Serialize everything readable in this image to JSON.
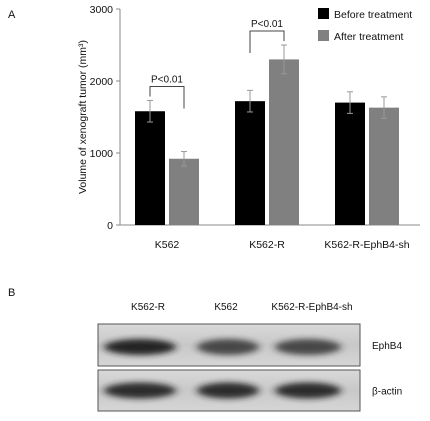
{
  "panel_a": {
    "letter": "A"
  },
  "panel_b": {
    "letter": "B",
    "lanes": [
      "K562-R",
      "K562",
      "K562-R-EphB4-sh"
    ],
    "rows": [
      {
        "label": "EphB4",
        "intensity": [
          0.95,
          0.75,
          0.75
        ]
      },
      {
        "label": "β-actin",
        "intensity": [
          0.9,
          0.9,
          0.9
        ]
      }
    ]
  },
  "chart_data": {
    "type": "bar",
    "categories": [
      "K562",
      "K562-R",
      "K562-R-EphB4-sh"
    ],
    "series": [
      {
        "name": "Before treatment",
        "values": [
          1580,
          1720,
          1700
        ],
        "errors": [
          150,
          150,
          150
        ],
        "color": "#000000"
      },
      {
        "name": "After treatment",
        "values": [
          920,
          2300,
          1630
        ],
        "errors": [
          100,
          200,
          150
        ],
        "color": "#808080"
      }
    ],
    "title": "",
    "xlabel": "",
    "ylabel": "Volume of xenograft tumor (mm³)",
    "ylim": [
      0,
      3000
    ],
    "yticks": [
      "0",
      "1000",
      "2000",
      "3000"
    ],
    "grid": false,
    "legend_position": "top-right",
    "annotations": [
      {
        "category": "K562",
        "text": "P<0.01"
      },
      {
        "category": "K562-R",
        "text": "P<0.01"
      }
    ]
  }
}
